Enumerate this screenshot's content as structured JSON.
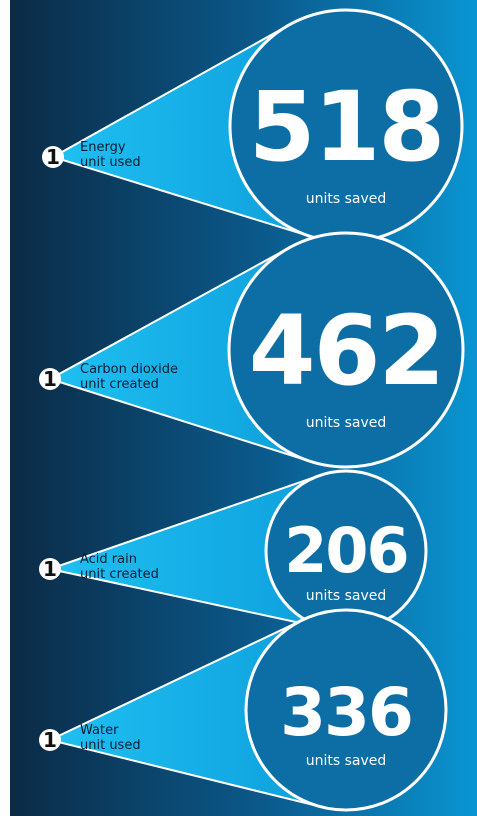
{
  "items": [
    {
      "badge": "1",
      "label": [
        "Energy",
        "unit used"
      ],
      "number": 518,
      "unit": "units saved"
    },
    {
      "badge": "1",
      "label": [
        "Carbon dioxide",
        "unit created"
      ],
      "number": 462,
      "unit": "units saved"
    },
    {
      "badge": "1",
      "label": [
        "Acid rain",
        "unit created"
      ],
      "number": 206,
      "unit": "units saved"
    },
    {
      "badge": "1",
      "label": [
        "Water",
        "unit used"
      ],
      "number": 336,
      "unit": "units saved"
    }
  ]
}
